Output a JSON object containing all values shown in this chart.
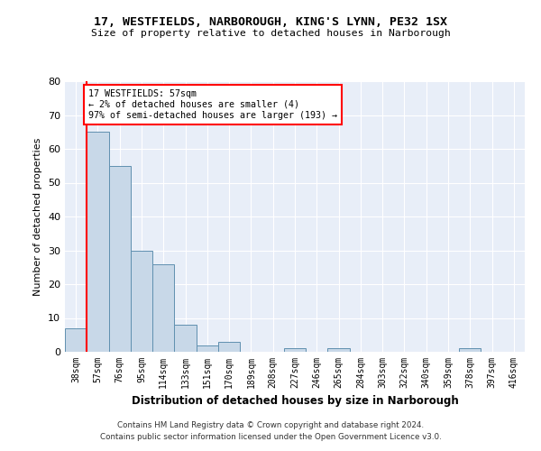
{
  "title_line1": "17, WESTFIELDS, NARBOROUGH, KING'S LYNN, PE32 1SX",
  "title_line2": "Size of property relative to detached houses in Narborough",
  "xlabel": "Distribution of detached houses by size in Narborough",
  "ylabel": "Number of detached properties",
  "bin_labels": [
    "38sqm",
    "57sqm",
    "76sqm",
    "95sqm",
    "114sqm",
    "133sqm",
    "151sqm",
    "170sqm",
    "189sqm",
    "208sqm",
    "227sqm",
    "246sqm",
    "265sqm",
    "284sqm",
    "303sqm",
    "322sqm",
    "340sqm",
    "359sqm",
    "378sqm",
    "397sqm",
    "416sqm"
  ],
  "bar_heights": [
    7,
    65,
    55,
    30,
    26,
    8,
    2,
    3,
    0,
    0,
    1,
    0,
    1,
    0,
    0,
    0,
    0,
    0,
    1,
    0,
    0
  ],
  "bar_color": "#c8d8e8",
  "bar_edge_color": "#6090b0",
  "red_line_x": 1,
  "annotation_text": "17 WESTFIELDS: 57sqm\n← 2% of detached houses are smaller (4)\n97% of semi-detached houses are larger (193) →",
  "annotation_box_color": "white",
  "annotation_box_edge_color": "red",
  "ylim": [
    0,
    80
  ],
  "yticks": [
    0,
    10,
    20,
    30,
    40,
    50,
    60,
    70,
    80
  ],
  "footer_line1": "Contains HM Land Registry data © Crown copyright and database right 2024.",
  "footer_line2": "Contains public sector information licensed under the Open Government Licence v3.0.",
  "plot_bg_color": "#e8eef8"
}
